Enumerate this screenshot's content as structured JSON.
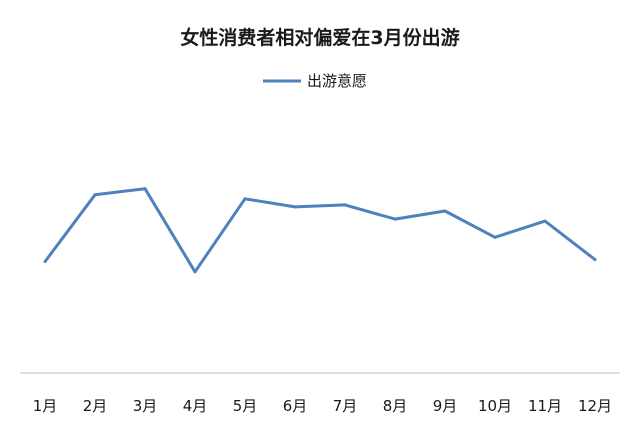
{
  "chart_data": {
    "type": "line",
    "title": "女性消费者相对偏爱在3月份出游",
    "categories": [
      "1月",
      "2月",
      "3月",
      "4月",
      "5月",
      "6月",
      "7月",
      "8月",
      "9月",
      "10月",
      "11月",
      "12月"
    ],
    "series": [
      {
        "name": "出游意愿",
        "color": "#4f81bd",
        "values": [
          55,
          88,
          91,
          50,
          86,
          82,
          83,
          76,
          80,
          67,
          75,
          56
        ]
      }
    ],
    "xlabel": "",
    "ylabel": "",
    "ylim": [
      0,
      120
    ],
    "grid": false,
    "y_axis_visible": false,
    "legend": "top-center"
  }
}
